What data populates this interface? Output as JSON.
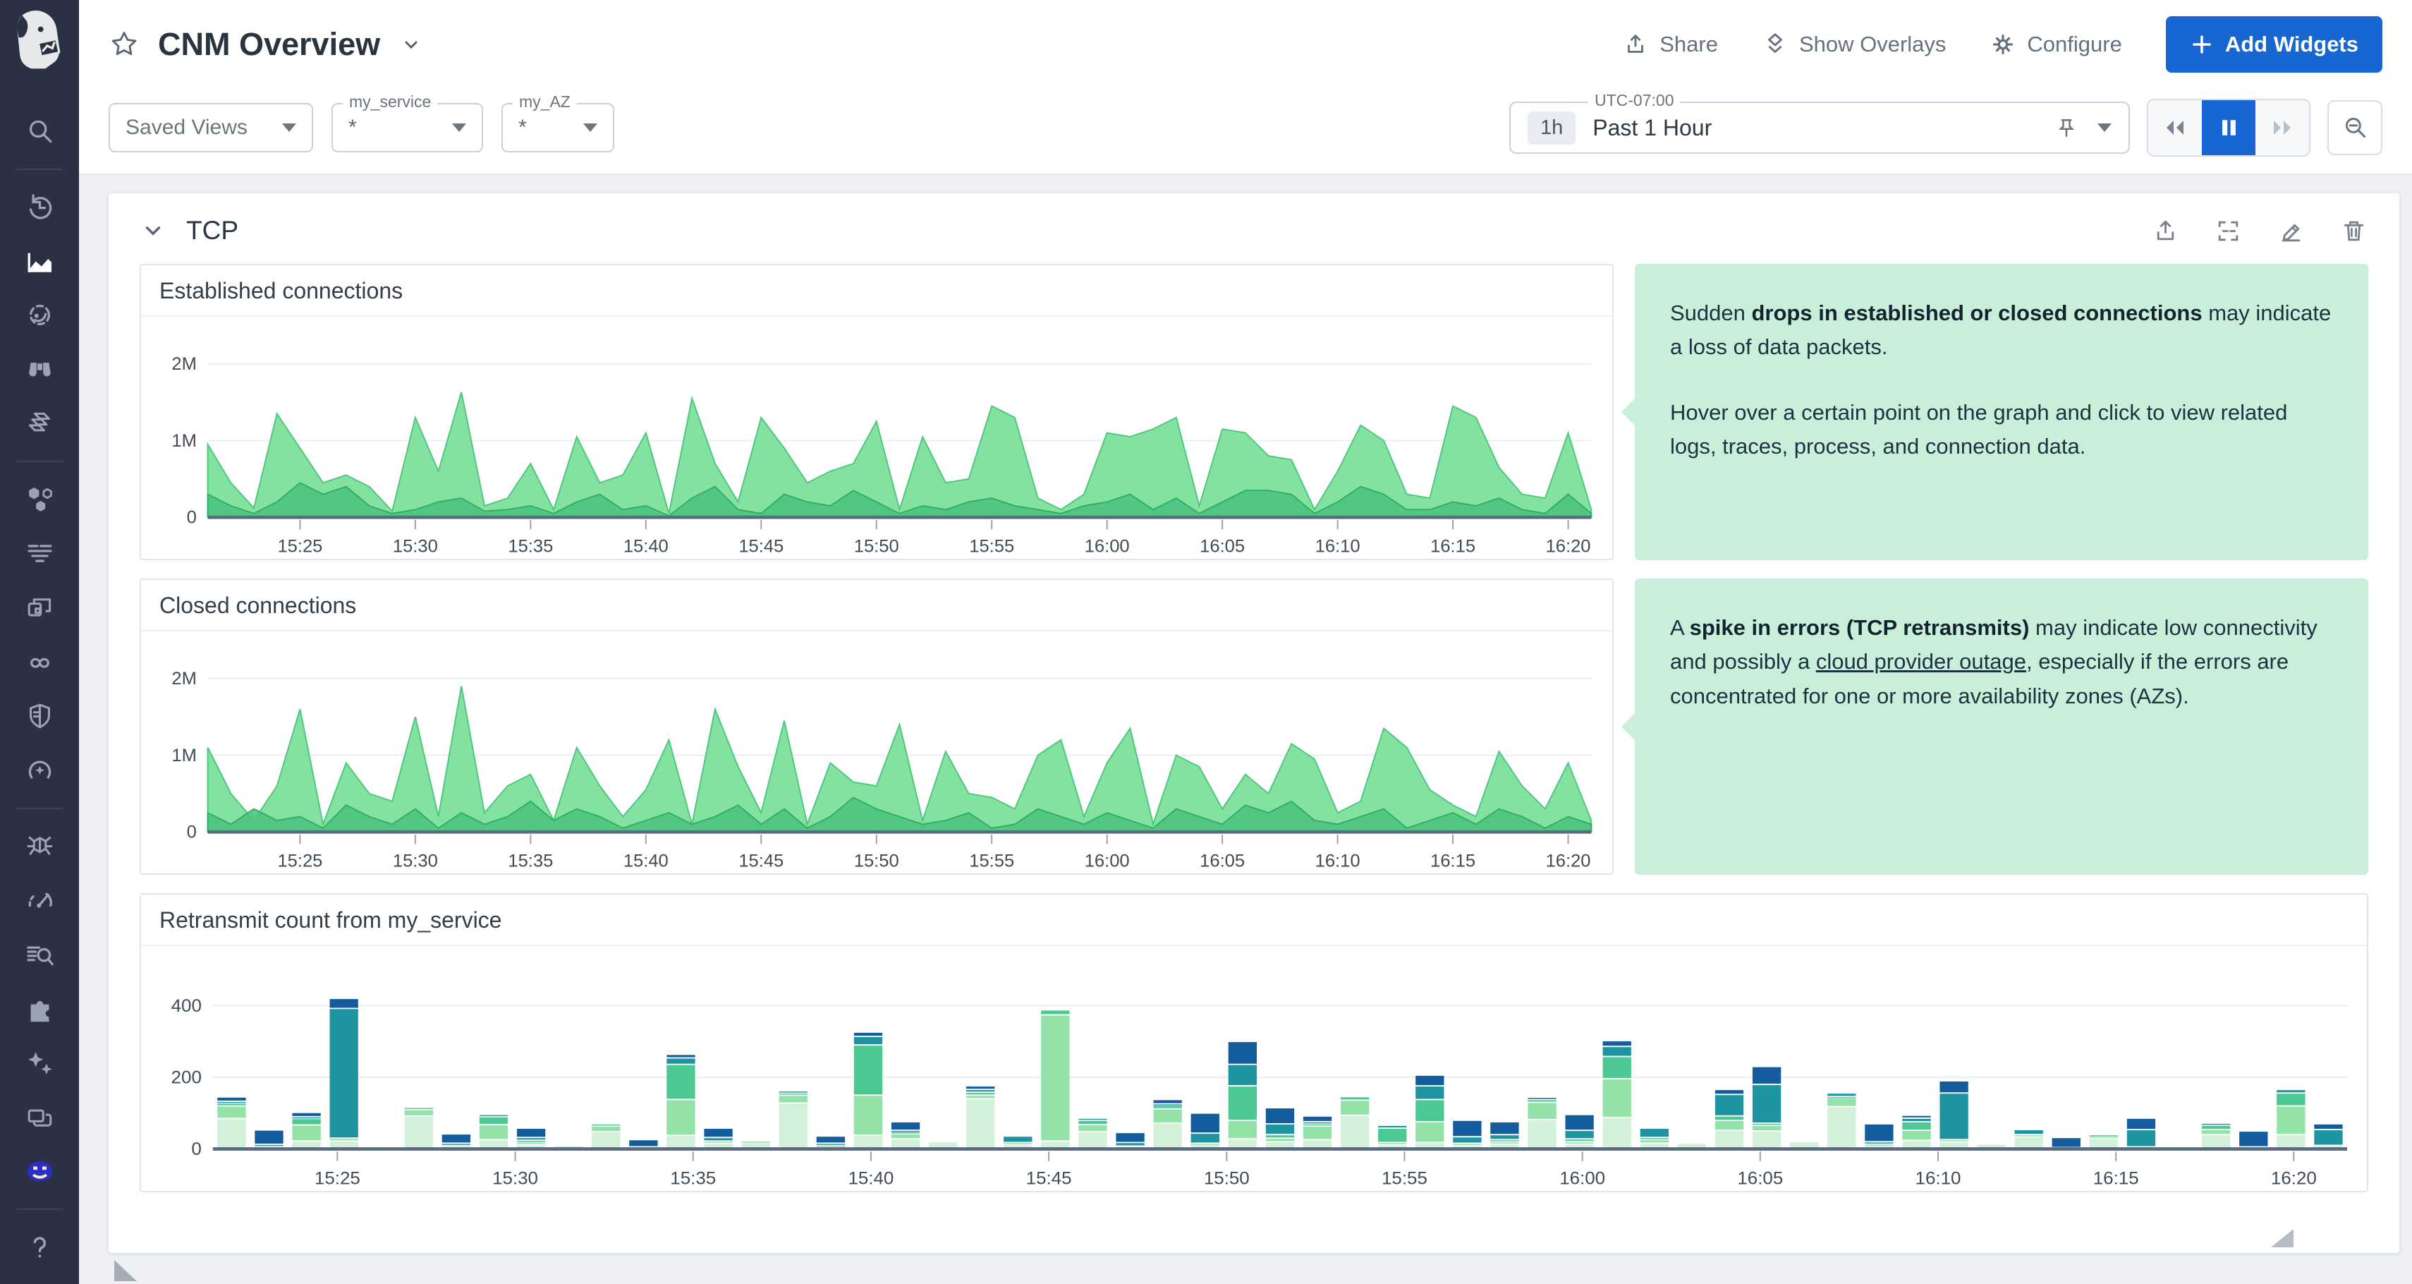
{
  "colors": {
    "primary_blue": "#1766d1",
    "note_green": "#c9efdb",
    "sidebar_bg": "#2b3142",
    "area_fill": "#84e2a0",
    "area_stroke": "#4cc87e",
    "zero_line": "#5d6b80"
  },
  "sidebar": {
    "icons": [
      "datadog-logo",
      "search-icon",
      "history-icon",
      "metrics-icon",
      "watchdog-icon",
      "binoculars-icon",
      "layers-icon",
      "hexagons-icon",
      "logs-icon",
      "apps-icon",
      "pipelines-icon",
      "security-shield-icon",
      "synthetics-icon",
      "bug-icon",
      "profiling-icon",
      "log-search-icon",
      "integrations-puzzle-icon",
      "sparkles-icon",
      "windows-icon",
      "user-avatar",
      "help-icon"
    ]
  },
  "header": {
    "title": "CNM Overview",
    "actions": {
      "share": "Share",
      "show_overlays": "Show Overlays",
      "configure": "Configure",
      "add_widgets": "Add Widgets"
    }
  },
  "toolbar": {
    "saved_views_label": "Saved Views",
    "variables": [
      {
        "label": "my_service",
        "value": "*"
      },
      {
        "label": "my_AZ",
        "value": "*"
      }
    ],
    "time": {
      "timezone_label": "UTC-07:00",
      "range_short": "1h",
      "range_label": "Past 1 Hour"
    }
  },
  "group": {
    "title": "TCP"
  },
  "notes": [
    {
      "paragraphs": [
        [
          {
            "t": "Sudden "
          },
          {
            "t": "drops in established or closed connections",
            "style": "bold"
          },
          {
            "t": " may indicate a loss of data packets."
          }
        ],
        [
          {
            "t": "Hover over a certain point on the graph and click to view related logs, traces, process, and connection data."
          }
        ]
      ]
    },
    {
      "paragraphs": [
        [
          {
            "t": "A "
          },
          {
            "t": "spike in errors (TCP retransmits)",
            "style": "bold"
          },
          {
            "t": " may indicate low connectivity and possibly a "
          },
          {
            "t": "cloud provider outage",
            "style": "link"
          },
          {
            "t": ", especially if the errors are concentrated for one or more availability zones (AZs)."
          }
        ]
      ]
    }
  ],
  "chart_data": [
    {
      "type": "area",
      "title": "Established connections",
      "x_start": "15:21",
      "x_step_minutes": 1,
      "domain_minutes": 60,
      "tick_minutes": [
        4,
        9,
        14,
        19,
        24,
        29,
        34,
        39,
        44,
        49,
        54,
        59
      ],
      "tick_labels": [
        "15:25",
        "15:30",
        "15:35",
        "15:40",
        "15:45",
        "15:50",
        "15:55",
        "16:00",
        "16:05",
        "16:10",
        "16:15",
        "16:20"
      ],
      "ylim": [
        0,
        2400000
      ],
      "ytick_values": [
        0,
        1000000,
        2000000
      ],
      "ytick_labels": [
        "0",
        "1M",
        "2M"
      ],
      "grid": true,
      "legend": false,
      "series": [
        {
          "name": "established-connections",
          "color": "#84e2a0",
          "stroke": "#4cc87e",
          "opacity": 1,
          "values_millions": [
            0.95,
            0.45,
            0.12,
            1.35,
            0.9,
            0.45,
            0.55,
            0.4,
            0.08,
            1.3,
            0.6,
            1.63,
            0.15,
            0.25,
            0.7,
            0.1,
            1.05,
            0.45,
            0.55,
            1.1,
            0.05,
            1.55,
            0.7,
            0.2,
            1.3,
            0.9,
            0.45,
            0.6,
            0.7,
            1.25,
            0.1,
            1.05,
            0.45,
            0.5,
            1.45,
            1.3,
            0.25,
            0.1,
            0.3,
            1.1,
            1.05,
            1.15,
            1.3,
            0.15,
            1.15,
            1.1,
            0.8,
            0.75,
            0.1,
            0.6,
            1.2,
            1.0,
            0.3,
            0.25,
            1.45,
            1.3,
            0.65,
            0.3,
            0.25,
            1.1,
            0.1
          ]
        },
        {
          "name": "established-connections-overlap",
          "color": "#4cc481",
          "stroke": "#2fae62",
          "opacity": 0.9,
          "values_millions": [
            0.3,
            0.15,
            0.05,
            0.2,
            0.45,
            0.3,
            0.4,
            0.15,
            0.05,
            0.1,
            0.2,
            0.25,
            0.08,
            0.1,
            0.15,
            0.05,
            0.2,
            0.3,
            0.1,
            0.15,
            0.02,
            0.25,
            0.4,
            0.1,
            0.05,
            0.3,
            0.2,
            0.15,
            0.35,
            0.2,
            0.05,
            0.15,
            0.1,
            0.2,
            0.25,
            0.15,
            0.1,
            0.05,
            0.15,
            0.2,
            0.3,
            0.1,
            0.25,
            0.05,
            0.2,
            0.35,
            0.35,
            0.3,
            0.05,
            0.2,
            0.4,
            0.3,
            0.1,
            0.1,
            0.2,
            0.15,
            0.25,
            0.1,
            0.05,
            0.3,
            0.05
          ]
        }
      ]
    },
    {
      "type": "area",
      "title": "Closed connections",
      "x_start": "15:21",
      "x_step_minutes": 1,
      "domain_minutes": 60,
      "tick_minutes": [
        4,
        9,
        14,
        19,
        24,
        29,
        34,
        39,
        44,
        49,
        54,
        59
      ],
      "tick_labels": [
        "15:25",
        "15:30",
        "15:35",
        "15:40",
        "15:45",
        "15:50",
        "15:55",
        "16:00",
        "16:05",
        "16:10",
        "16:15",
        "16:20"
      ],
      "ylim": [
        0,
        2400000
      ],
      "ytick_values": [
        0,
        1000000,
        2000000
      ],
      "ytick_labels": [
        "0",
        "1M",
        "2M"
      ],
      "grid": true,
      "legend": false,
      "series": [
        {
          "name": "closed-connections",
          "color": "#84e2a0",
          "stroke": "#4cc87e",
          "opacity": 1,
          "values_millions": [
            1.1,
            0.5,
            0.15,
            0.6,
            1.6,
            0.1,
            0.9,
            0.5,
            0.4,
            1.5,
            0.2,
            1.9,
            0.25,
            0.6,
            0.75,
            0.15,
            1.1,
            0.6,
            0.2,
            0.55,
            1.2,
            0.1,
            1.6,
            0.85,
            0.25,
            1.45,
            0.1,
            0.9,
            0.65,
            0.6,
            1.4,
            0.15,
            1.05,
            0.5,
            0.45,
            0.3,
            1.0,
            1.2,
            0.2,
            0.9,
            1.35,
            0.1,
            1.0,
            0.85,
            0.3,
            0.75,
            0.5,
            1.15,
            0.95,
            0.25,
            0.4,
            1.35,
            1.1,
            0.55,
            0.35,
            0.2,
            1.05,
            0.6,
            0.3,
            0.9,
            0.15
          ]
        },
        {
          "name": "closed-connections-overlap",
          "color": "#4cc481",
          "stroke": "#2fae62",
          "opacity": 0.9,
          "values_millions": [
            0.25,
            0.1,
            0.3,
            0.15,
            0.2,
            0.05,
            0.35,
            0.2,
            0.1,
            0.3,
            0.05,
            0.25,
            0.1,
            0.2,
            0.4,
            0.15,
            0.3,
            0.2,
            0.05,
            0.15,
            0.25,
            0.1,
            0.2,
            0.35,
            0.1,
            0.3,
            0.05,
            0.2,
            0.45,
            0.3,
            0.2,
            0.1,
            0.15,
            0.25,
            0.05,
            0.1,
            0.3,
            0.2,
            0.1,
            0.25,
            0.15,
            0.05,
            0.3,
            0.2,
            0.1,
            0.35,
            0.25,
            0.4,
            0.15,
            0.1,
            0.2,
            0.3,
            0.05,
            0.15,
            0.25,
            0.1,
            0.3,
            0.2,
            0.05,
            0.2,
            0.1
          ]
        }
      ]
    },
    {
      "type": "stacked_bar",
      "title": "Retransmit count from my_service",
      "x_start": "15:21.5",
      "domain_minutes": 60,
      "tick_minutes": [
        3.5,
        8.5,
        13.5,
        18.5,
        23.5,
        28.5,
        33.5,
        38.5,
        43.5,
        48.5,
        53.5,
        58.5
      ],
      "tick_labels": [
        "15:25",
        "15:30",
        "15:35",
        "15:40",
        "15:45",
        "15:50",
        "15:55",
        "16:00",
        "16:05",
        "16:10",
        "16:15",
        "16:20"
      ],
      "ylim": [
        0,
        520
      ],
      "ytick_values": [
        0,
        200,
        400
      ],
      "ytick_labels": [
        "0",
        "200",
        "400"
      ],
      "grid": true,
      "legend": false,
      "stack_names": [
        "series-1",
        "series-2",
        "series-3",
        "series-4",
        "series-5"
      ],
      "stack_colors": [
        "#d3f1d8",
        "#93e2a8",
        "#4cc893",
        "#1d94a0",
        "#135d9e"
      ],
      "bars": [
        [
          85,
          35,
          8,
          5,
          12
        ],
        [
          8,
          0,
          0,
          5,
          40
        ],
        [
          22,
          45,
          18,
          5,
          12
        ],
        [
          22,
          8,
          0,
          362,
          28
        ],
        [
          6,
          0,
          0,
          0,
          0
        ],
        [
          92,
          18,
          6,
          0,
          0
        ],
        [
          10,
          0,
          0,
          6,
          26
        ],
        [
          26,
          42,
          22,
          6,
          0
        ],
        [
          12,
          6,
          6,
          8,
          26
        ],
        [
          10,
          0,
          0,
          0,
          0
        ],
        [
          48,
          16,
          6,
          0,
          0
        ],
        [
          6,
          0,
          0,
          0,
          20
        ],
        [
          38,
          100,
          98,
          18,
          10
        ],
        [
          16,
          6,
          0,
          10,
          26
        ],
        [
          18,
          4,
          0,
          0,
          0
        ],
        [
          128,
          22,
          6,
          6,
          0
        ],
        [
          6,
          4,
          0,
          6,
          20
        ],
        [
          38,
          112,
          140,
          24,
          12
        ],
        [
          28,
          14,
          6,
          4,
          24
        ],
        [
          20,
          0,
          0,
          0,
          0
        ],
        [
          140,
          10,
          8,
          8,
          10
        ],
        [
          12,
          6,
          0,
          18,
          0
        ],
        [
          22,
          352,
          14,
          0,
          0
        ],
        [
          48,
          20,
          12,
          6,
          0
        ],
        [
          8,
          0,
          0,
          10,
          28
        ],
        [
          72,
          40,
          10,
          4,
          12
        ],
        [
          12,
          4,
          0,
          28,
          56
        ],
        [
          28,
          52,
          96,
          60,
          64
        ],
        [
          20,
          10,
          10,
          30,
          45
        ],
        [
          26,
          38,
          6,
          6,
          16
        ],
        [
          94,
          42,
          10,
          0,
          0
        ],
        [
          12,
          6,
          40,
          8,
          0
        ],
        [
          18,
          58,
          62,
          38,
          30
        ],
        [
          10,
          6,
          0,
          18,
          46
        ],
        [
          14,
          6,
          6,
          14,
          36
        ],
        [
          82,
          48,
          8,
          0,
          6
        ],
        [
          14,
          6,
          8,
          24,
          44
        ],
        [
          88,
          108,
          62,
          28,
          16
        ],
        [
          16,
          10,
          6,
          26,
          0
        ],
        [
          16,
          0,
          0,
          0,
          0
        ],
        [
          52,
          28,
          12,
          60,
          14
        ],
        [
          50,
          16,
          6,
          108,
          50
        ],
        [
          20,
          0,
          0,
          0,
          0
        ],
        [
          118,
          24,
          4,
          10,
          0
        ],
        [
          10,
          4,
          0,
          6,
          50
        ],
        [
          24,
          28,
          24,
          10,
          8
        ],
        [
          20,
          6,
          0,
          130,
          34
        ],
        [
          14,
          0,
          0,
          0,
          0
        ],
        [
          34,
          6,
          0,
          14,
          0
        ],
        [
          4,
          0,
          0,
          0,
          28
        ],
        [
          30,
          6,
          4,
          0,
          0
        ],
        [
          6,
          0,
          0,
          48,
          32
        ],
        [
          4,
          0,
          0,
          0,
          0
        ],
        [
          40,
          14,
          12,
          6,
          0
        ],
        [
          0,
          0,
          0,
          6,
          44
        ],
        [
          40,
          80,
          36,
          10,
          0
        ],
        [
          10,
          0,
          0,
          44,
          16
        ]
      ]
    }
  ]
}
